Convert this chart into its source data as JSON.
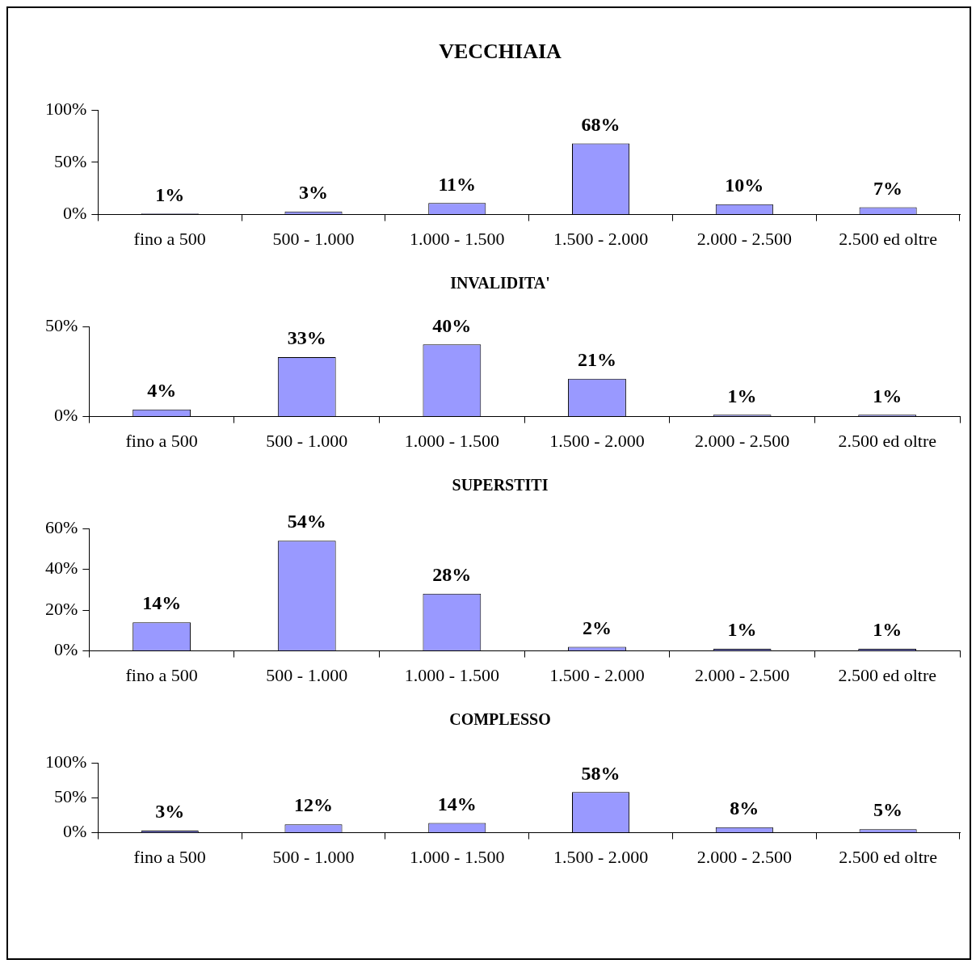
{
  "chart_data": [
    {
      "type": "bar",
      "title": "VECCHIAIA",
      "categories": [
        "fino a 500",
        "500 - 1.000",
        "1.000 - 1.500",
        "1.500 - 2.000",
        "2.000 - 2.500",
        "2.500 ed oltre"
      ],
      "values": [
        1,
        3,
        11,
        68,
        10,
        7
      ],
      "value_labels": [
        "1%",
        "3%",
        "11%",
        "68%",
        "10%",
        "7%"
      ],
      "color": "#9999ff",
      "ylim": [
        0,
        100
      ],
      "yticks": [
        {
          "value": 0,
          "label": "0%"
        },
        {
          "value": 50,
          "label": "50%"
        },
        {
          "value": 100,
          "label": "100%"
        }
      ]
    },
    {
      "type": "bar",
      "title": "INVALIDITA'",
      "categories": [
        "fino a 500",
        "500 - 1.000",
        "1.000 - 1.500",
        "1.500 - 2.000",
        "2.000 - 2.500",
        "2.500 ed oltre"
      ],
      "values": [
        4,
        33,
        40,
        21,
        1,
        1
      ],
      "value_labels": [
        "4%",
        "33%",
        "40%",
        "21%",
        "1%",
        "1%"
      ],
      "color": "#9999ff",
      "ylim": [
        0,
        50
      ],
      "yticks": [
        {
          "value": 0,
          "label": "0%"
        },
        {
          "value": 50,
          "label": "50%"
        }
      ]
    },
    {
      "type": "bar",
      "title": "SUPERSTITI",
      "categories": [
        "fino a 500",
        "500 - 1.000",
        "1.000 - 1.500",
        "1.500 - 2.000",
        "2.000 - 2.500",
        "2.500 ed oltre"
      ],
      "values": [
        14,
        54,
        28,
        2,
        1,
        1
      ],
      "value_labels": [
        "14%",
        "54%",
        "28%",
        "2%",
        "1%",
        "1%"
      ],
      "color": "#9999ff",
      "ylim": [
        0,
        60
      ],
      "yticks": [
        {
          "value": 0,
          "label": "0%"
        },
        {
          "value": 20,
          "label": "20%"
        },
        {
          "value": 40,
          "label": "40%"
        },
        {
          "value": 60,
          "label": "60%"
        }
      ]
    },
    {
      "type": "bar",
      "title": "COMPLESSO",
      "categories": [
        "fino a 500",
        "500 - 1.000",
        "1.000 - 1.500",
        "1.500 - 2.000",
        "2.000 - 2.500",
        "2.500 ed oltre"
      ],
      "values": [
        3,
        12,
        14,
        58,
        8,
        5
      ],
      "value_labels": [
        "3%",
        "12%",
        "14%",
        "58%",
        "8%",
        "5%"
      ],
      "color": "#9999ff",
      "ylim": [
        0,
        100
      ],
      "yticks": [
        {
          "value": 0,
          "label": "0%"
        },
        {
          "value": 50,
          "label": "50%"
        },
        {
          "value": 100,
          "label": "100%"
        }
      ]
    }
  ]
}
